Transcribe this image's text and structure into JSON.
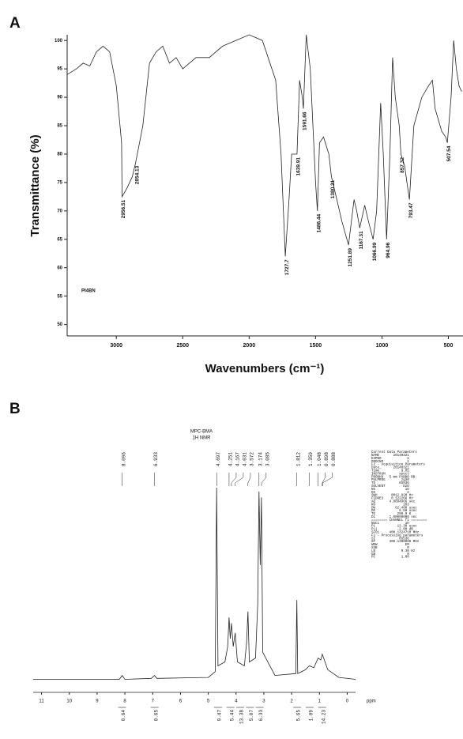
{
  "chart_data": [
    {
      "type": "line",
      "panel_label": "A",
      "ylabel": "Transmittance (%)",
      "xlabel": "Wavenumbers (cm⁻¹)",
      "sample_label": "PI4BN",
      "color": "#222222",
      "x": [
        3370,
        3300,
        3250,
        3200,
        3150,
        3100,
        3050,
        3000,
        2960,
        2956.51,
        2920,
        2880,
        2854.13,
        2800,
        2750,
        2700,
        2650,
        2600,
        2550,
        2500,
        2450,
        2400,
        2300,
        2200,
        2100,
        2000,
        1900,
        1800,
        1760,
        1727.7,
        1700,
        1680,
        1639.91,
        1620,
        1600,
        1591.66,
        1570,
        1540,
        1500,
        1486.44,
        1470,
        1440,
        1400,
        1380.21,
        1340,
        1300,
        1251.89,
        1210,
        1190,
        1167.31,
        1130,
        1100,
        1066.99,
        1040,
        1010,
        990,
        964.96,
        940,
        920,
        900,
        870,
        857.32,
        830,
        800,
        793.47,
        760,
        700,
        650,
        620,
        600,
        550,
        520,
        507.54,
        480,
        460,
        440,
        420,
        400
      ],
      "values": [
        94,
        95,
        96,
        95.5,
        98,
        99,
        98,
        92,
        82,
        72.5,
        74,
        76,
        78.5,
        85,
        96,
        98,
        99,
        96,
        97,
        95,
        96,
        97,
        97,
        99,
        100,
        101,
        100,
        93,
        80,
        62,
        72,
        80,
        80,
        93,
        90,
        88,
        101,
        95,
        75,
        70,
        82,
        83,
        80,
        76,
        72,
        68,
        64,
        72,
        70,
        67,
        71,
        68,
        65,
        70,
        89,
        80,
        65,
        80,
        97,
        90,
        85,
        80,
        78,
        73,
        72,
        85,
        90,
        92,
        93,
        88,
        84,
        83,
        82,
        90,
        100,
        95,
        92,
        91
      ],
      "xlim": [
        3370,
        390
      ],
      "xticks": [
        3000,
        2500,
        2000,
        1500,
        1000,
        500
      ],
      "ylim": [
        48,
        101
      ],
      "yticks": [
        50,
        55,
        60,
        65,
        70,
        75,
        80,
        85,
        90,
        95,
        100
      ],
      "peak_labels": [
        2956.51,
        2854.13,
        1727.7,
        1639.91,
        1591.66,
        1486.44,
        1380.21,
        1251.89,
        1167.31,
        1066.99,
        964.96,
        857.32,
        793.47,
        507.54
      ]
    },
    {
      "type": "line",
      "panel_label": "B",
      "title": "MPC-BMA",
      "subtitle": "1H NMR",
      "x_unit": "ppm",
      "color": "#222222",
      "x": [
        11.3,
        8.2,
        8.096,
        8.0,
        7.05,
        6.933,
        6.85,
        5.0,
        4.75,
        4.697,
        4.65,
        4.4,
        4.3,
        4.251,
        4.21,
        4.167,
        4.1,
        4.031,
        3.95,
        3.7,
        3.62,
        3.572,
        3.52,
        3.3,
        3.22,
        3.174,
        3.13,
        3.085,
        3.04,
        2.6,
        1.85,
        1.812,
        1.78,
        1.5,
        1.359,
        1.2,
        1.048,
        0.95,
        0.898,
        0.7,
        0.3,
        -0.3
      ],
      "values": [
        1,
        1,
        3,
        1,
        1.5,
        3,
        1.5,
        2,
        5,
        100,
        8,
        10,
        18,
        33,
        22,
        30,
        18,
        25,
        10,
        8,
        20,
        36,
        10,
        12,
        40,
        98,
        60,
        95,
        15,
        3,
        4,
        42,
        4,
        6,
        8,
        7,
        12,
        11,
        14,
        6,
        2,
        1
      ],
      "xlim": [
        11.3,
        -0.3
      ],
      "xticks": [
        11,
        10,
        9,
        8,
        7,
        6,
        5,
        4,
        3,
        2,
        1,
        0
      ],
      "ylim": [
        0,
        100
      ],
      "peak_labels": [
        8.096,
        6.933,
        4.697,
        4.251,
        4.167,
        4.031,
        3.572,
        3.174,
        3.085,
        1.812,
        1.359,
        1.048,
        0.898,
        0.888
      ],
      "integrals": [
        {
          "x": 8.1,
          "value": 0.64
        },
        {
          "x": 6.93,
          "value": 0.65
        },
        {
          "x": 4.65,
          "value": 9.47
        },
        {
          "x": 4.2,
          "value": 5.44
        },
        {
          "x": 3.85,
          "value": 13.38
        },
        {
          "x": 3.5,
          "value": 5.07
        },
        {
          "x": 3.15,
          "value": 6.33
        },
        {
          "x": 1.8,
          "value": 5.65
        },
        {
          "x": 1.35,
          "value": 1.09
        },
        {
          "x": 0.9,
          "value": 14.23
        }
      ],
      "parameters": [
        "Current Data Parameters",
        "NAME       20140321",
        "EXPNO             1",
        "PROCNO            1",
        "F2 - Acquisition Parameters",
        "Date_      20140321",
        "Time           9.05",
        "INSTRUM       spect",
        "PROBHD   5 mm PABBO BB-",
        "PULPROG        zg30",
        "TD            65536",
        "SOLVENT         D2O",
        "NS               16",
        "DS                2",
        "SWH       8012.820 Hz",
        "FIDRES    0.122266 Hz",
        "AQ       4.0894966 sec",
        "RG              203",
        "DW          62.400 usec",
        "DE            6.50 usec",
        "TE           298.0 K",
        "D1       1.00000000 sec",
        "======== CHANNEL f1 ========",
        "NUC1             1H",
        "P1           13.30 usec",
        "PL1          -2.00 dB",
        "SFO1     400.1324710 MHz",
        "F2 - Processing parameters",
        "SI            65536",
        "SF       400.1300080 MHz",
        "WDW              EM",
        "SSB               0",
        "LB             0.30 Hz",
        "GB                0",
        "PC             1.00"
      ]
    }
  ]
}
